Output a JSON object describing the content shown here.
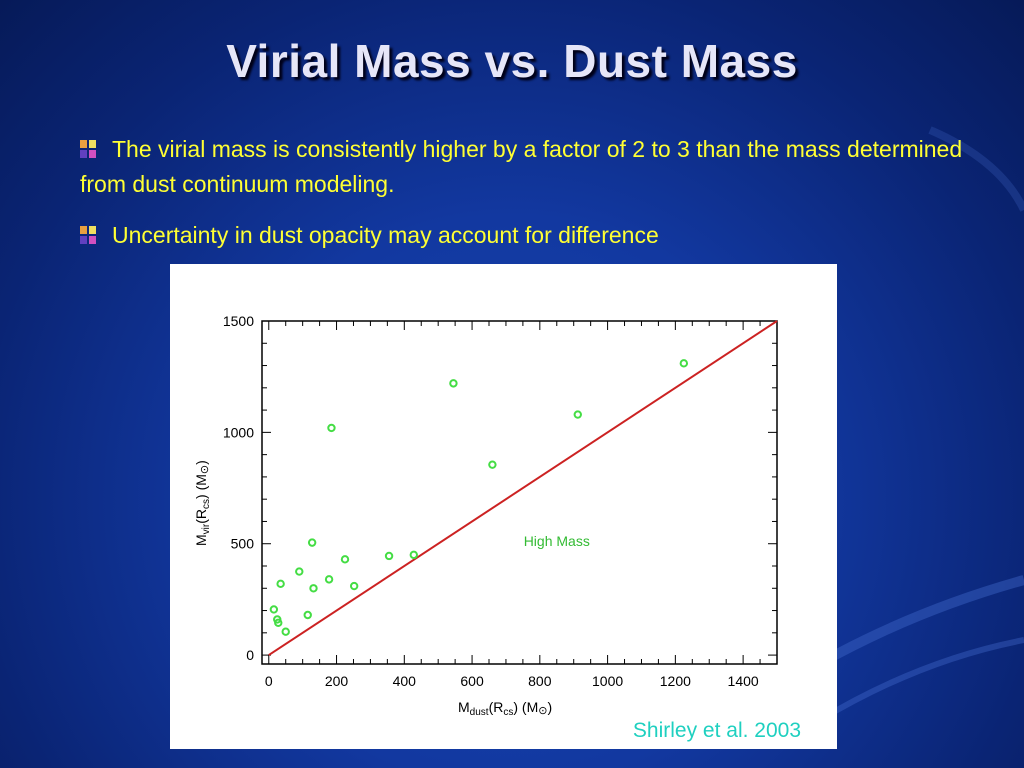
{
  "slide": {
    "title": "Virial Mass vs. Dust Mass",
    "bullets": [
      "The virial mass is consistently higher by a factor of 2 to 3 than the mass determined from dust continuum modeling.",
      "Uncertainty in dust opacity may account for difference"
    ],
    "citation": "Shirley et al. 2003"
  },
  "colors": {
    "background": "#1238a0",
    "title": "#e6e6f8",
    "bullet_text": "#ffff33",
    "citation": "#1fd0c0",
    "points": "#44dd44",
    "line": "#cc2222"
  },
  "chart_data": {
    "type": "scatter",
    "xlabel_main": "M",
    "xlabel_sub": "dust",
    "xlabel_arg": "(R",
    "xlabel_argsub": "cs",
    "xlabel_tail": ")  (M",
    "xlabel_sun": "⊙",
    "xlabel_close": ")",
    "ylabel_main": "M",
    "ylabel_sub": "vir",
    "ylabel_arg": "(R",
    "ylabel_argsub": "cs",
    "ylabel_tail": ")  (M",
    "ylabel_sun": "⊙",
    "ylabel_close": ")",
    "xlim": [
      -20,
      1500
    ],
    "ylim": [
      -40,
      1500
    ],
    "x_ticks": [
      0,
      200,
      400,
      600,
      800,
      1000,
      1200,
      1400
    ],
    "y_ticks": [
      0,
      500,
      1000,
      1500
    ],
    "annotation": "High Mass",
    "annotation_pos": [
      850,
      490
    ],
    "reference_line": {
      "x": [
        0,
        1500
      ],
      "y": [
        0,
        1500
      ]
    },
    "points": [
      {
        "x": 15,
        "y": 205
      },
      {
        "x": 25,
        "y": 160
      },
      {
        "x": 28,
        "y": 145
      },
      {
        "x": 35,
        "y": 320
      },
      {
        "x": 50,
        "y": 105
      },
      {
        "x": 90,
        "y": 375
      },
      {
        "x": 115,
        "y": 180
      },
      {
        "x": 128,
        "y": 505
      },
      {
        "x": 132,
        "y": 300
      },
      {
        "x": 178,
        "y": 340
      },
      {
        "x": 185,
        "y": 1020
      },
      {
        "x": 225,
        "y": 430
      },
      {
        "x": 252,
        "y": 310
      },
      {
        "x": 355,
        "y": 445
      },
      {
        "x": 428,
        "y": 450
      },
      {
        "x": 545,
        "y": 1220
      },
      {
        "x": 660,
        "y": 855
      },
      {
        "x": 912,
        "y": 1080
      },
      {
        "x": 1225,
        "y": 1310
      }
    ]
  }
}
